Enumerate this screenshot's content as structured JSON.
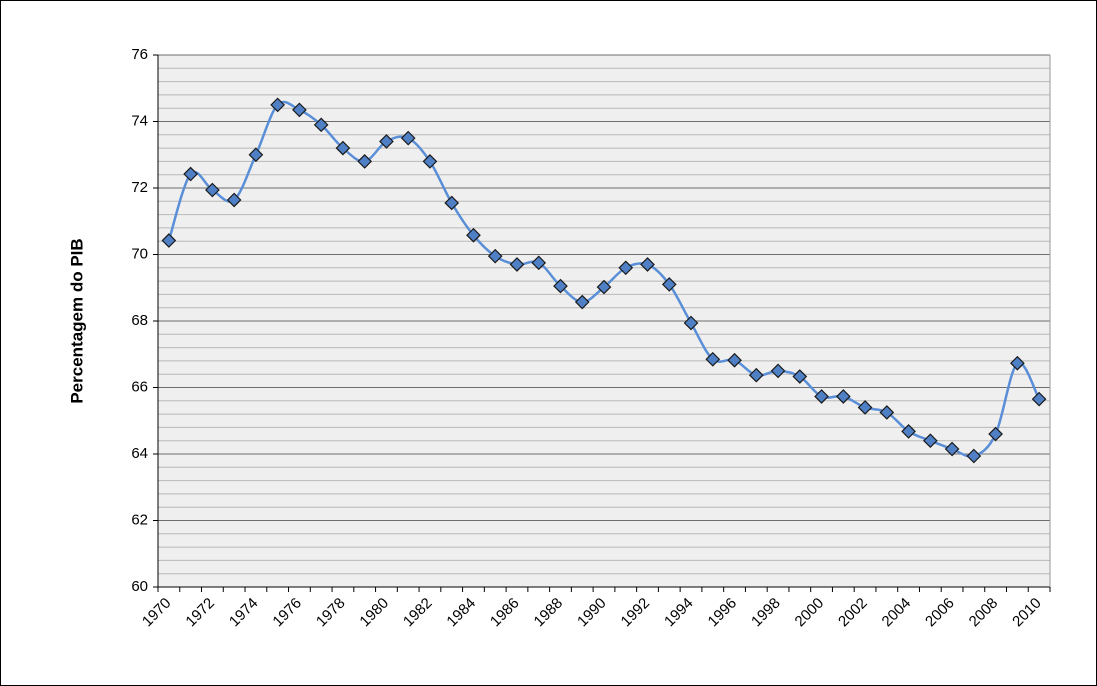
{
  "chart_data": {
    "type": "line",
    "y_label": "Percentagem do PIB",
    "categories": [
      "1970",
      null,
      "1972",
      null,
      "1974",
      null,
      "1976",
      null,
      "1978",
      null,
      "1980",
      null,
      "1982",
      null,
      "1984",
      null,
      "1986",
      null,
      "1988",
      null,
      "1990",
      null,
      "1992",
      null,
      "1994",
      null,
      "1996",
      null,
      "1998",
      null,
      "2000",
      null,
      "2002",
      null,
      "2004",
      null,
      "2006",
      null,
      "2008",
      null,
      "2010"
    ],
    "series": [
      {
        "name": null,
        "color": "#5a8fd8",
        "marker_color": "#4f7fc4",
        "values": [
          70.42,
          72.42,
          71.94,
          71.64,
          73.0,
          74.5,
          74.35,
          73.9,
          73.2,
          72.8,
          73.4,
          73.5,
          72.8,
          71.55,
          70.58,
          69.95,
          69.7,
          69.75,
          69.05,
          68.57,
          69.02,
          69.6,
          69.7,
          69.1,
          67.94,
          66.85,
          66.82,
          66.37,
          66.5,
          66.33,
          65.73,
          65.73,
          65.4,
          65.25,
          64.68,
          64.4,
          64.15,
          63.94,
          64.6,
          66.73,
          65.65
        ]
      }
    ],
    "ylim": [
      60,
      76
    ],
    "yticks": [
      60,
      62,
      64,
      66,
      68,
      70,
      72,
      74,
      76
    ],
    "minor_yticks": [
      60.4,
      60.8,
      61.2,
      61.6,
      62.4,
      62.8,
      63.2,
      63.6,
      64.4,
      64.8,
      65.2,
      65.6,
      66.4,
      66.8,
      67.2,
      67.6,
      68.4,
      68.8,
      69.2,
      69.6,
      70.4,
      70.8,
      71.2,
      71.6,
      72.4,
      72.8,
      73.2,
      73.6,
      74.4,
      74.8,
      75.2,
      75.6
    ],
    "grid": true
  }
}
